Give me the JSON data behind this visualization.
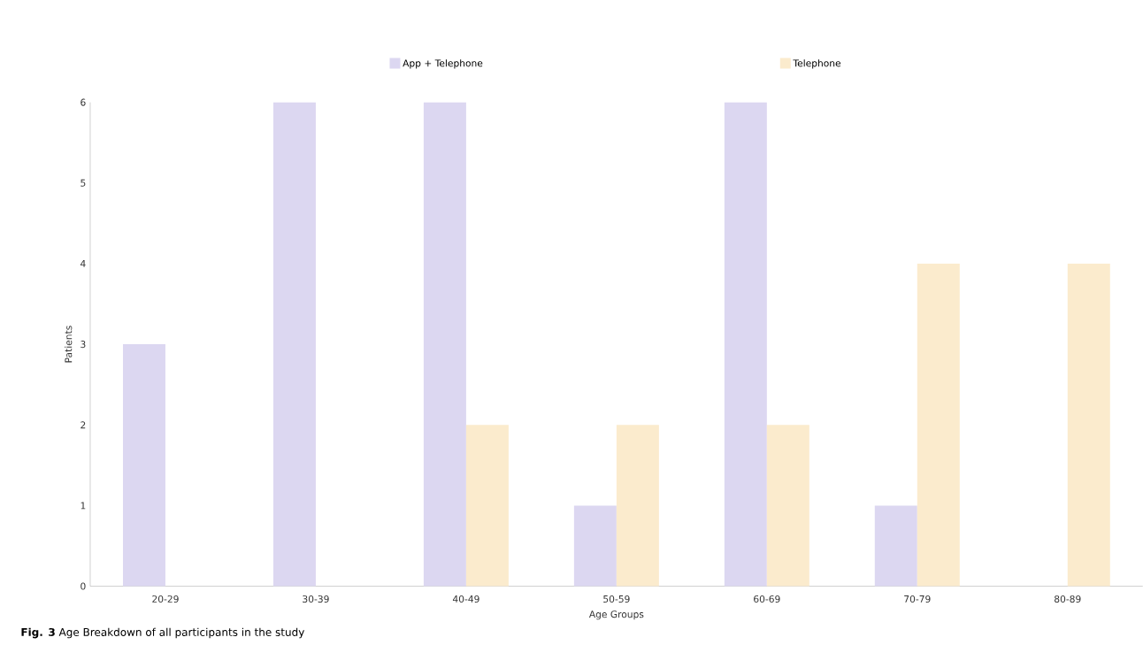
{
  "chart_data": {
    "type": "bar",
    "xlabel": "Age Groups",
    "ylabel": "Patients",
    "categories": [
      "20-29",
      "30-39",
      "40-49",
      "50-59",
      "60-69",
      "70-79",
      "80-89"
    ],
    "series": [
      {
        "name": "App + Telephone",
        "color": "#dcd7f1",
        "values": [
          3,
          6,
          6,
          1,
          6,
          1,
          0
        ]
      },
      {
        "name": "Telephone",
        "color": "#fbebcd",
        "values": [
          0,
          0,
          2,
          2,
          2,
          4,
          4
        ]
      }
    ],
    "ylim": [
      0,
      6
    ],
    "yticks": [
      0,
      1,
      2,
      3,
      4,
      5,
      6
    ],
    "legend": "top",
    "annotations": [
      "**Fig. 3** Age Breakdown of all participants in the study"
    ]
  }
}
